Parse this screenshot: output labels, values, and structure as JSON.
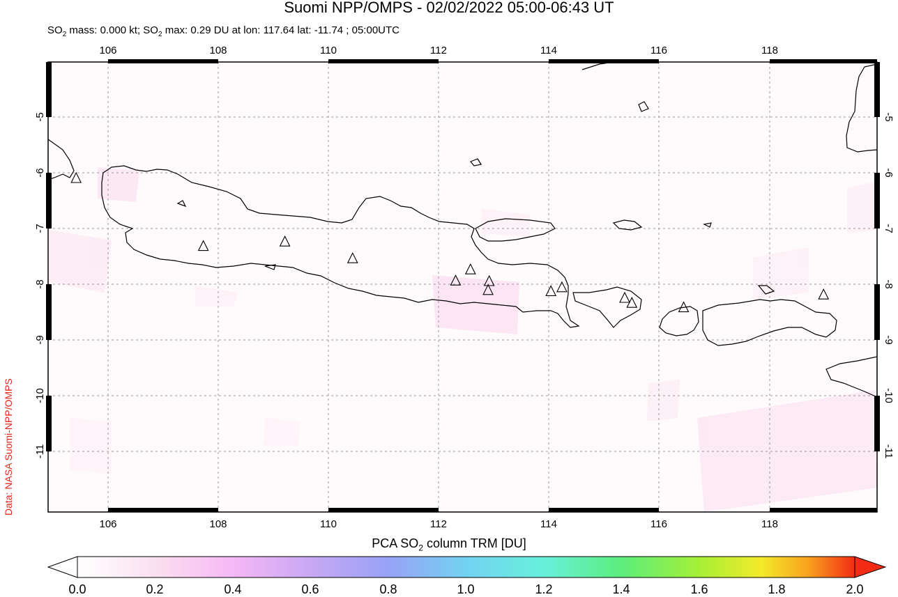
{
  "title": "Suomi NPP/OMPS - 02/02/2022 05:00-06:43 UT",
  "subtitle": {
    "prefix": "SO",
    "sub": "2",
    "mass": " mass: 0.000 kt; SO",
    "sub2": "2",
    "rest": " max: 0.29 DU at lon: 117.64 lat: -11.74 ; 05:00UTC"
  },
  "credit": "Data: NASA Suomi-NPP/OMPS",
  "map": {
    "lon_range": [
      104.9,
      120
    ],
    "lat_range": [
      -12.05,
      -3.95
    ],
    "lon_ticks": [
      "106",
      "108",
      "110",
      "112",
      "114",
      "116",
      "118"
    ],
    "lat_ticks": [
      "-5",
      "-6",
      "-7",
      "-8",
      "-9",
      "-10",
      "-11"
    ],
    "volcanoes": [
      {
        "lon": 105.42,
        "lat": -6.1
      },
      {
        "lon": 107.73,
        "lat": -7.32
      },
      {
        "lon": 109.21,
        "lat": -7.24
      },
      {
        "lon": 110.44,
        "lat": -7.54
      },
      {
        "lon": 112.31,
        "lat": -7.94
      },
      {
        "lon": 112.58,
        "lat": -7.74
      },
      {
        "lon": 112.92,
        "lat": -7.95
      },
      {
        "lon": 112.9,
        "lat": -8.11
      },
      {
        "lon": 114.04,
        "lat": -8.13
      },
      {
        "lon": 114.24,
        "lat": -8.06
      },
      {
        "lon": 115.38,
        "lat": -8.25
      },
      {
        "lon": 115.51,
        "lat": -8.34
      },
      {
        "lon": 116.45,
        "lat": -8.42
      },
      {
        "lon": 118.99,
        "lat": -8.19
      }
    ]
  },
  "colorbar": {
    "label_prefix": "PCA SO",
    "label_sub": "2",
    "label_suffix": " column TRM [DU]",
    "ticks": [
      "0.0",
      "0.2",
      "0.4",
      "0.6",
      "0.8",
      "1.0",
      "1.2",
      "1.4",
      "1.6",
      "1.8",
      "2.0"
    ],
    "colors": [
      "#ffffff",
      "#fbd6ee",
      "#f4b4f4",
      "#c9a6f4",
      "#9aa4f6",
      "#6fd6f4",
      "#66f2c8",
      "#5fef66",
      "#b5f238",
      "#f6e62a",
      "#f8a41e",
      "#f22c14"
    ]
  }
}
